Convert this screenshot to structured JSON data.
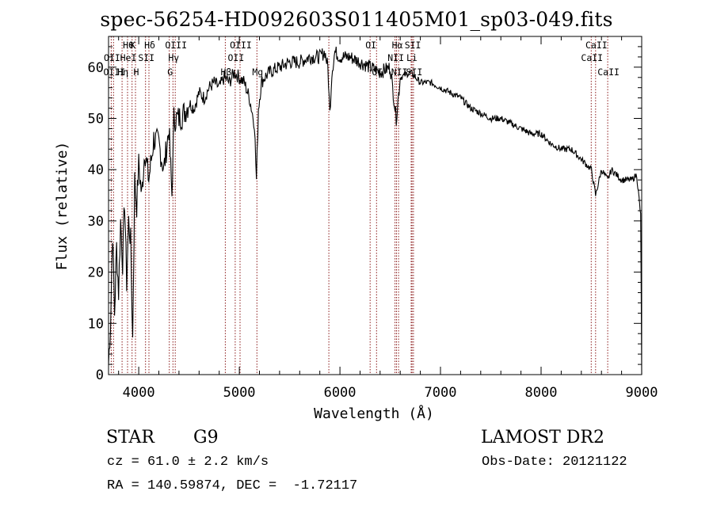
{
  "chart_data": {
    "type": "line",
    "title": "spec-56254-HD092603S011405M01_sp03-049.fits",
    "xlabel": "Wavelength (Å)",
    "ylabel": "Flux (relative)",
    "xlim": [
      3700,
      9000
    ],
    "ylim": [
      0,
      66
    ],
    "xticks": [
      4000,
      5000,
      6000,
      7000,
      8000,
      9000
    ],
    "yticks": [
      0,
      10,
      20,
      30,
      40,
      50,
      60
    ],
    "grid": false,
    "series": [
      {
        "x": [
          3700,
          3720,
          3740,
          3760,
          3780,
          3800,
          3820,
          3840,
          3860,
          3880,
          3900,
          3920,
          3940,
          3960,
          3980,
          4000,
          4030,
          4060,
          4100,
          4150,
          4200,
          4250,
          4300,
          4330,
          4350,
          4400,
          4450,
          4500,
          4550,
          4600,
          4650,
          4700,
          4750,
          4800,
          4850,
          4900,
          4950,
          5000,
          5050,
          5100,
          5150,
          5170,
          5190,
          5220,
          5250,
          5300,
          5400,
          5500,
          5600,
          5700,
          5800,
          5850,
          5880,
          5900,
          5920,
          5950,
          6000,
          6100,
          6200,
          6300,
          6400,
          6500,
          6560,
          6600,
          6700,
          6800,
          6900,
          7000,
          7100,
          7200,
          7300,
          7400,
          7500,
          7600,
          7700,
          7800,
          7900,
          8000,
          8100,
          8200,
          8300,
          8400,
          8450,
          8500,
          8542,
          8600,
          8662,
          8700,
          8800,
          8900,
          8950,
          8990,
          9000
        ],
        "values": [
          2,
          10,
          28,
          12,
          25,
          16,
          30,
          22,
          34,
          18,
          30,
          26,
          7,
          38,
          33,
          41,
          35,
          44,
          38,
          46,
          45,
          40,
          48,
          35,
          50,
          50,
          51,
          53,
          52,
          55,
          54,
          56,
          57,
          56,
          58,
          57,
          59,
          58,
          57,
          54,
          49,
          38,
          52,
          57,
          58,
          59,
          60,
          61,
          61,
          62,
          62,
          63,
          60,
          51,
          59,
          63,
          62,
          62,
          61,
          60,
          59,
          60,
          50,
          58,
          59,
          57,
          57,
          56,
          55,
          54,
          52,
          51,
          50,
          50,
          49,
          48,
          47,
          47,
          45,
          44,
          44,
          42,
          41,
          40,
          35,
          40,
          38,
          40,
          38,
          38,
          39,
          31,
          0
        ]
      }
    ],
    "line_labels": [
      {
        "wl": 3727,
        "text": "OII",
        "row": 2
      },
      {
        "wl": 3750,
        "text": "OIII",
        "row": 3
      },
      {
        "wl": 3835,
        "text": "Hη",
        "row": 3
      },
      {
        "wl": 3889,
        "text": "Hθ",
        "row": 1
      },
      {
        "wl": 3934,
        "text": "K",
        "row": 1
      },
      {
        "wl": 3889,
        "text": "HeI",
        "row": 2
      },
      {
        "wl": 3968,
        "text": "H",
        "row": 3
      },
      {
        "wl": 4068,
        "text": "SII",
        "row": 2
      },
      {
        "wl": 4102,
        "text": "Hδ",
        "row": 1
      },
      {
        "wl": 4340,
        "text": "Hγ",
        "row": 2
      },
      {
        "wl": 4304,
        "text": "G",
        "row": 3
      },
      {
        "wl": 4363,
        "text": "OIII",
        "row": 1
      },
      {
        "wl": 4861,
        "text": "Hβ",
        "row": 3
      },
      {
        "wl": 4959,
        "text": "OII",
        "row": 2
      },
      {
        "wl": 5007,
        "text": "OIII",
        "row": 1
      },
      {
        "wl": 5175,
        "text": "Mg",
        "row": 3
      },
      {
        "wl": 6300,
        "text": "OI",
        "row": 1
      },
      {
        "wl": 6364,
        "text": "OI",
        "row": 3
      },
      {
        "wl": 6563,
        "text": "Hα",
        "row": 1
      },
      {
        "wl": 6548,
        "text": "NII",
        "row": 2
      },
      {
        "wl": 6583,
        "text": "NII",
        "row": 3
      },
      {
        "wl": 6708,
        "text": "Li",
        "row": 2
      },
      {
        "wl": 6717,
        "text": "SII",
        "row": 1
      },
      {
        "wl": 6731,
        "text": "SII",
        "row": 3
      },
      {
        "wl": 8498,
        "text": "CaII",
        "row": 2
      },
      {
        "wl": 8542,
        "text": "CaII",
        "row": 1
      },
      {
        "wl": 8662,
        "text": "CaII",
        "row": 3
      }
    ],
    "line_markers": [
      3727,
      3750,
      3835,
      3889,
      3934,
      3968,
      4068,
      4102,
      4304,
      4340,
      4363,
      4861,
      4959,
      5007,
      5175,
      5890,
      6300,
      6364,
      6548,
      6563,
      6583,
      6708,
      6717,
      6731,
      8498,
      8542,
      8662
    ]
  },
  "footer": {
    "classification": "STAR",
    "subclass": "G9",
    "survey": "LAMOST DR2",
    "redshift": "cz = 61.0 ± 2.2 km/s",
    "obs_date": "Obs-Date: 20121122",
    "coords": "RA = 140.59874, DEC =  -1.72117"
  },
  "colors": {
    "spectrum": "#000000",
    "marker_lines": "#8b1a1a"
  }
}
